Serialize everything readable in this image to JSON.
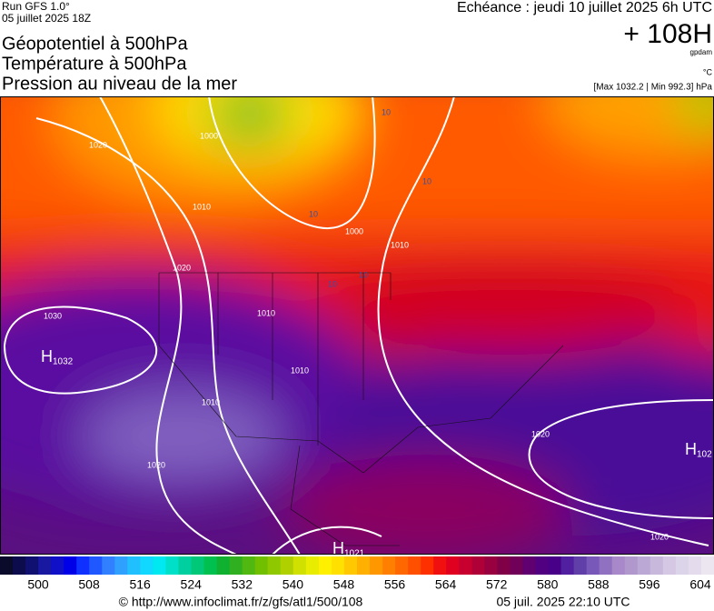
{
  "header": {
    "run": "Run GFS 1.0°",
    "date": "05 juillet 2025 18Z",
    "titles": [
      "Géopotentiel à 500hPa",
      "Température à 500hPa",
      "Pression au niveau de la mer"
    ],
    "echeance": "Echéance : jeudi 10 juillet 2025 6h UTC",
    "lead": "+ 108H",
    "unit_height": "gpdam",
    "unit_temp": "°C",
    "range": "[Max 1032.2 | Min 992.3] hPa"
  },
  "map": {
    "isobar_labels": [
      "1020",
      "1000",
      "1010",
      "1020",
      "1030",
      "1010",
      "1000",
      "1010",
      "1010",
      "1010",
      "1020",
      "1020",
      "1020"
    ],
    "temp_labels": [
      "10",
      "10",
      "10",
      "10",
      "10"
    ],
    "centers": [
      {
        "letter": "H",
        "value": "1032"
      },
      {
        "letter": "H",
        "value": "1021"
      },
      {
        "letter": "H",
        "value": "102"
      }
    ]
  },
  "scale": {
    "ticks": [
      500,
      508,
      516,
      524,
      532,
      540,
      548,
      556,
      564,
      572,
      580,
      588,
      596,
      604
    ],
    "colors": [
      "#0a0a2a",
      "#0c0c4c",
      "#101070",
      "#1818a0",
      "#1010c8",
      "#0000e8",
      "#1030ff",
      "#2058ff",
      "#3080ff",
      "#30a0ff",
      "#20c0ff",
      "#10d8ff",
      "#00e8f0",
      "#00e0c8",
      "#00d0a0",
      "#00c878",
      "#00c050",
      "#10b030",
      "#30b020",
      "#50b810",
      "#70c000",
      "#90c800",
      "#b0d000",
      "#d0e000",
      "#e8ec00",
      "#fff000",
      "#ffe000",
      "#ffc800",
      "#ffb000",
      "#ff9800",
      "#ff8000",
      "#ff6800",
      "#ff5000",
      "#ff3000",
      "#f01010",
      "#e00020",
      "#c80030",
      "#b00038",
      "#980040",
      "#800048",
      "#700058",
      "#600070",
      "#500080",
      "#480088",
      "#5020a0",
      "#6040a8",
      "#7858b8",
      "#9070c0",
      "#a888c8",
      "#b098cc",
      "#bca8d4",
      "#c8b8dc",
      "#d4c8e4",
      "#dcd4e8",
      "#e4dcec",
      "#ece6f0"
    ]
  },
  "footer": {
    "url": "© http://www.infoclimat.fr/z/gfs/atl1/500/108",
    "stamp": "05 juil. 2025 22:10 UTC"
  }
}
